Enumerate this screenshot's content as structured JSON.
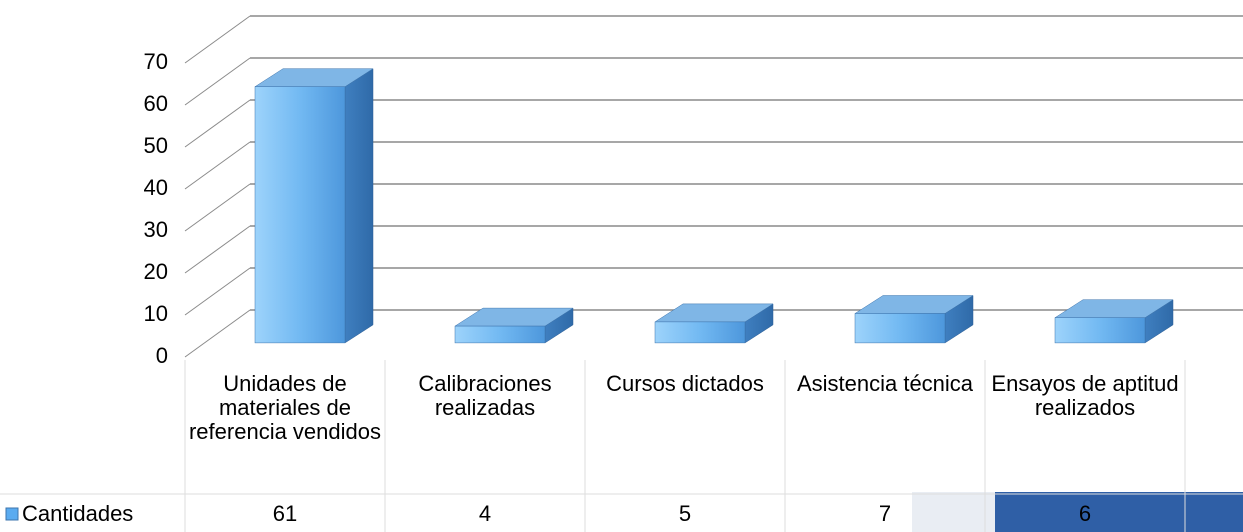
{
  "chart_data": {
    "type": "bar",
    "categories": [
      "Unidades de materiales de referencia vendidos",
      "Calibraciones realizadas",
      "Cursos dictados",
      "Asistencia técnica",
      "Ensayos de aptitud realizados"
    ],
    "series": [
      {
        "name": "Cantidades",
        "color": "#5aabf0",
        "values": [
          61,
          4,
          5,
          7,
          6
        ]
      }
    ],
    "ylim": [
      0,
      70
    ],
    "yticks": [
      0,
      10,
      20,
      30,
      40,
      50,
      60,
      70
    ],
    "grid": true
  }
}
